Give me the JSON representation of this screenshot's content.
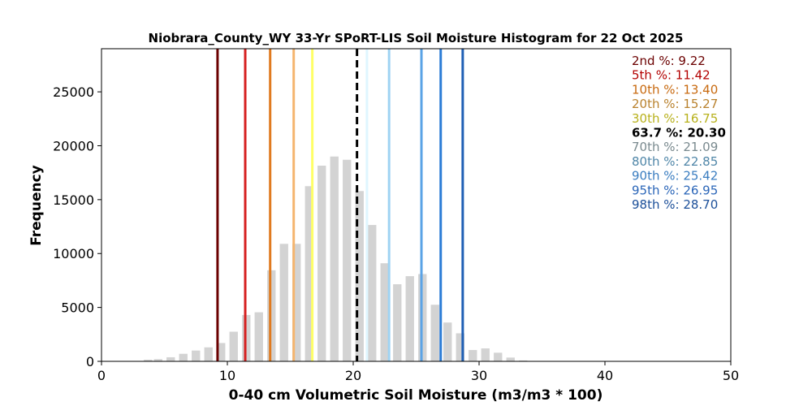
{
  "chart_data": {
    "type": "bar",
    "title": "Niobrara_County_WY 33-Yr SPoRT-LIS Soil Moisture Histogram for 22 Oct 2025",
    "xlabel": "0-40 cm Volumetric Soil Moisture (m3/m3 * 100)",
    "ylabel": "Frequency",
    "xlim": [
      0,
      50
    ],
    "ylim": [
      0,
      29000
    ],
    "xticks": [
      "0",
      "10",
      "20",
      "30",
      "40",
      "50"
    ],
    "yticks": [
      "0",
      "5000",
      "10000",
      "15000",
      "20000",
      "25000"
    ],
    "xtick_values": [
      0,
      10,
      20,
      30,
      40,
      50
    ],
    "ytick_values": [
      0,
      5000,
      10000,
      15000,
      20000,
      25000
    ],
    "bar_color": "#d3d3d3",
    "bin_width": 0.67,
    "bins": [
      {
        "x": 3.7,
        "y": 150
      },
      {
        "x": 4.5,
        "y": 200
      },
      {
        "x": 5.5,
        "y": 380
      },
      {
        "x": 6.5,
        "y": 700
      },
      {
        "x": 7.5,
        "y": 1000
      },
      {
        "x": 8.5,
        "y": 1300
      },
      {
        "x": 9.5,
        "y": 1700
      },
      {
        "x": 10.5,
        "y": 2750
      },
      {
        "x": 11.5,
        "y": 4300
      },
      {
        "x": 12.5,
        "y": 4550
      },
      {
        "x": 13.5,
        "y": 8450
      },
      {
        "x": 14.5,
        "y": 10900
      },
      {
        "x": 15.5,
        "y": 10900
      },
      {
        "x": 16.5,
        "y": 16250
      },
      {
        "x": 17.5,
        "y": 18150
      },
      {
        "x": 18.5,
        "y": 19000
      },
      {
        "x": 19.5,
        "y": 18700
      },
      {
        "x": 20.5,
        "y": 15800
      },
      {
        "x": 21.5,
        "y": 12650
      },
      {
        "x": 22.5,
        "y": 9100
      },
      {
        "x": 23.5,
        "y": 7150
      },
      {
        "x": 24.5,
        "y": 7900
      },
      {
        "x": 25.5,
        "y": 8100
      },
      {
        "x": 26.5,
        "y": 5250
      },
      {
        "x": 27.5,
        "y": 3600
      },
      {
        "x": 28.5,
        "y": 2600
      },
      {
        "x": 29.5,
        "y": 1050
      },
      {
        "x": 30.5,
        "y": 1200
      },
      {
        "x": 31.5,
        "y": 800
      },
      {
        "x": 32.5,
        "y": 350
      },
      {
        "x": 33.5,
        "y": 80
      }
    ],
    "percentile_lines": [
      {
        "label": "2nd %: 9.22",
        "value": 9.22,
        "color": "#6b0000",
        "text_color": "#6b0000",
        "dashed": false
      },
      {
        "label": "5th %: 11.42",
        "value": 11.42,
        "color": "#d62020",
        "text_color": "#b30000",
        "dashed": false
      },
      {
        "label": "10th %: 13.40",
        "value": 13.4,
        "color": "#e07a1f",
        "text_color": "#c86a10",
        "dashed": false
      },
      {
        "label": "20th %: 15.27",
        "value": 15.27,
        "color": "#f5b56e",
        "text_color": "#b9822e",
        "dashed": false
      },
      {
        "label": "30th %: 16.75",
        "value": 16.75,
        "color": "#ffff66",
        "text_color": "#b8b11c",
        "dashed": false
      },
      {
        "label": "63.7 %: 20.30",
        "value": 20.3,
        "color": "#000000",
        "text_color": "#000000",
        "dashed": true
      },
      {
        "label": "70th %: 21.09",
        "value": 21.09,
        "color": "#dff6ff",
        "text_color": "#7a8a8f",
        "dashed": false
      },
      {
        "label": "80th %: 22.85",
        "value": 22.85,
        "color": "#9fd3f3",
        "text_color": "#4f86a8",
        "dashed": false
      },
      {
        "label": "90th %: 25.42",
        "value": 25.42,
        "color": "#5aa3e6",
        "text_color": "#3a7dc0",
        "dashed": false
      },
      {
        "label": "95th %: 26.95",
        "value": 26.95,
        "color": "#2b7cd6",
        "text_color": "#2a65b8",
        "dashed": false
      },
      {
        "label": "98th %: 28.70",
        "value": 28.7,
        "color": "#1f5fb5",
        "text_color": "#1b4f99",
        "dashed": false
      }
    ],
    "legend": "top-right",
    "grid": false
  }
}
